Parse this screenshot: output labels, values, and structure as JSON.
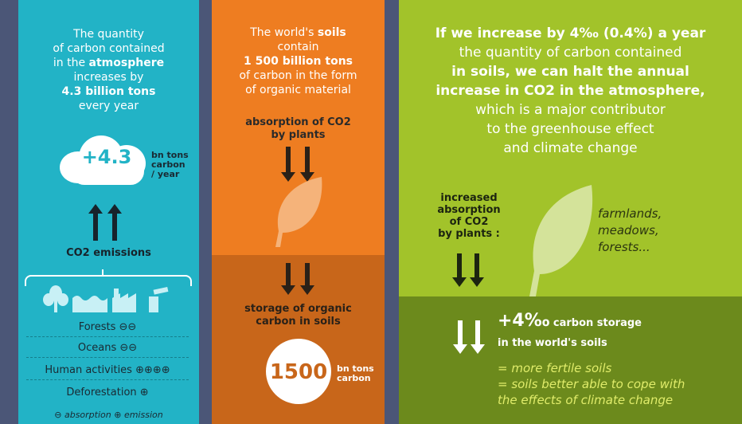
{
  "atmosphere": {
    "intro_lines": [
      "The quantity",
      "of carbon contained",
      "in the"
    ],
    "intro_bold": "atmosphere",
    "increases_by": "increases by",
    "amount_line": "4.3 billion tons",
    "every_year": "every year",
    "cloud_value": "+4.3",
    "cloud_unit_lines": [
      "bn tons",
      "carbon",
      "/ year"
    ],
    "co2_label": "CO2 emissions",
    "sources": [
      {
        "label": "Forests ⊖⊖"
      },
      {
        "label": "Oceans ⊖⊖"
      },
      {
        "label": "Human activities ⊕⊕⊕⊕"
      },
      {
        "label": "Deforestation ⊕"
      }
    ],
    "legend": "⊖ absorption ⊕ emission"
  },
  "soils": {
    "line1_pre": "The world's",
    "line1_bold": "soils",
    "line2": "contain",
    "line3": "1 500 billion tons",
    "line4": "of carbon in the form",
    "line5": "of organic material",
    "absorption_lines": [
      "absorption of CO2",
      "by plants"
    ],
    "storage_lines": [
      "storage of organic",
      "carbon in soils"
    ],
    "circle_value": "1500",
    "circle_unit_lines": [
      "bn tons",
      "carbon"
    ]
  },
  "increase": {
    "headline_lines": [
      "If we increase by 4‰ (0.4%) a year",
      "the quantity of carbon contained",
      "in soils, we can halt the annual",
      "increase in CO2 in the atmosphere,",
      "which is a major contributor",
      "to the greenhouse effect",
      "and climate change"
    ],
    "absorption_lines": [
      "increased",
      "absorption",
      "of CO2",
      "by plants :"
    ],
    "land_lines": [
      "farmlands,",
      "meadows,",
      "forests..."
    ],
    "storage_value": "+4‰",
    "storage_text_1": "carbon storage",
    "storage_text_2": "in the world's soils",
    "benefit_lines": [
      "= more fertile soils",
      "= soils better able to cope with",
      "the effects of climate change"
    ]
  },
  "colors": {
    "teal": "#22b3c6",
    "orange": "#ee7d21",
    "orange_dark": "#c8661a",
    "green": "#a2c32a",
    "green_dark": "#6c8a1c",
    "navy_bg": "#4b5677"
  }
}
